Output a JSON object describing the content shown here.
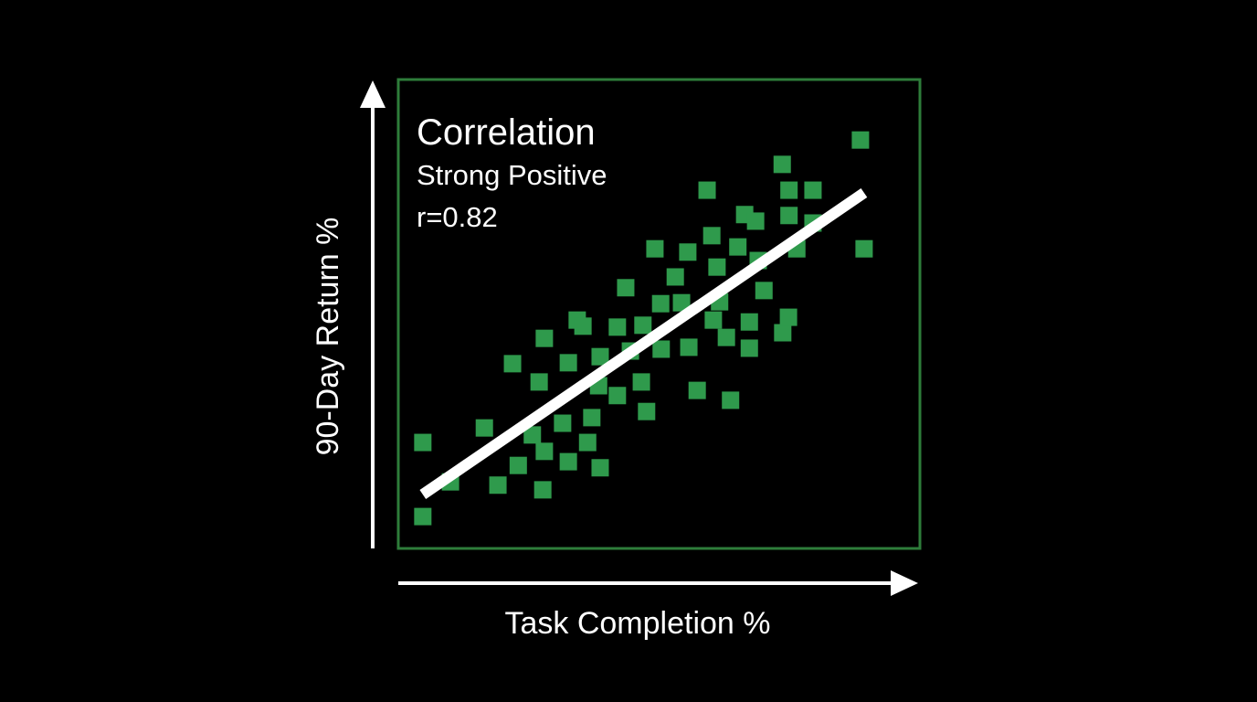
{
  "chart_data": {
    "type": "scatter",
    "title": "Correlation",
    "subtitle": "Strong Positive",
    "annotation": "r=0.82",
    "x_label": "Task Completion %",
    "y_label": "90-Day Return %",
    "color": "#2f9a4c",
    "frame_color": "#2e7d3a",
    "trend_line": true,
    "xlim": [
      0,
      100
    ],
    "ylim": [
      0,
      100
    ],
    "x": [
      4.7,
      4.7,
      10.0,
      16.5,
      19.1,
      21.9,
      23.0,
      25.7,
      27.0,
      27.7,
      28.0,
      28.0,
      31.5,
      32.6,
      32.6,
      34.3,
      35.4,
      36.3,
      37.1,
      38.4,
      38.7,
      38.7,
      42.0,
      42.0,
      43.6,
      44.5,
      46.6,
      46.9,
      47.6,
      49.2,
      50.3,
      50.4,
      53.1,
      54.3,
      55.5,
      55.7,
      57.3,
      59.2,
      60.1,
      60.4,
      61.1,
      61.6,
      62.9,
      63.7,
      65.1,
      66.4,
      67.3,
      67.3,
      68.5,
      69.0,
      70.1,
      73.6,
      73.7,
      74.8,
      74.9,
      74.9,
      76.4,
      79.5,
      79.5,
      88.6,
      89.3
    ],
    "values": [
      22.6,
      6.8,
      14.2,
      25.7,
      13.5,
      39.4,
      17.7,
      24.2,
      35.5,
      12.5,
      44.8,
      20.7,
      26.7,
      39.6,
      18.5,
      48.7,
      47.4,
      22.6,
      27.9,
      34.7,
      17.2,
      40.9,
      47.2,
      32.6,
      55.6,
      42.1,
      35.5,
      47.6,
      29.2,
      63.9,
      52.2,
      42.5,
      57.9,
      52.4,
      63.2,
      42.9,
      33.7,
      76.4,
      66.7,
      48.7,
      60.0,
      52.6,
      45.0,
      31.6,
      64.3,
      71.2,
      48.3,
      42.7,
      69.8,
      61.4,
      55.0,
      81.9,
      46.0,
      49.3,
      76.4,
      71.0,
      63.9,
      76.4,
      69.4,
      87.1,
      63.9
    ]
  }
}
